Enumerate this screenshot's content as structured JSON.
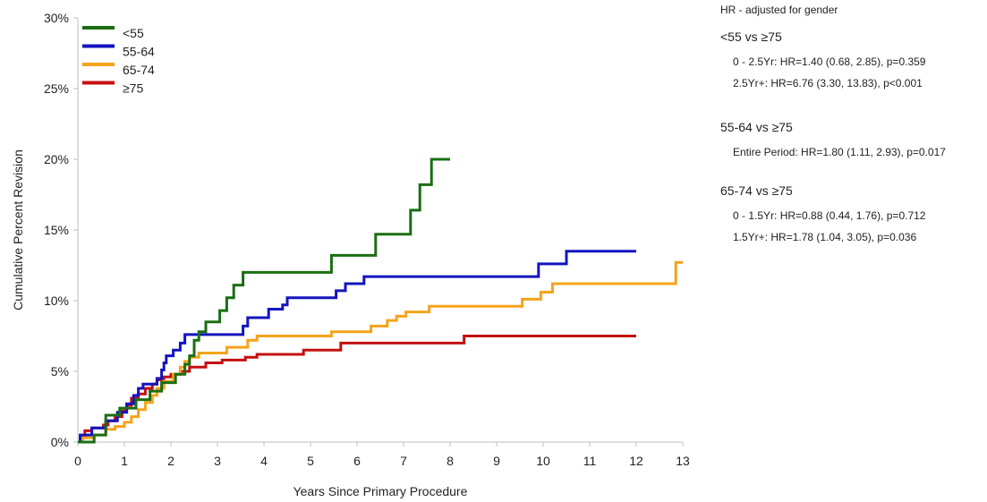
{
  "chart_data": {
    "type": "line",
    "title": "",
    "xlabel": "Years Since Primary Procedure",
    "ylabel": "Cumulative Percent Revision",
    "xlim": [
      0,
      13
    ],
    "ylim": [
      0,
      30
    ],
    "x_ticks": [
      "0",
      "1",
      "2",
      "3",
      "4",
      "5",
      "6",
      "7",
      "8",
      "9",
      "10",
      "11",
      "12",
      "13"
    ],
    "y_ticks": [
      "0%",
      "5%",
      "10%",
      "15%",
      "20%",
      "25%",
      "30%"
    ],
    "grid": false,
    "legend_position": "top-left",
    "series": [
      {
        "name": "<55",
        "color": "#1a6e12",
        "points": [
          [
            0,
            0
          ],
          [
            0.35,
            0
          ],
          [
            0.35,
            0.5
          ],
          [
            0.6,
            0.5
          ],
          [
            0.6,
            1.9
          ],
          [
            0.9,
            1.9
          ],
          [
            0.9,
            2.4
          ],
          [
            1.25,
            2.4
          ],
          [
            1.25,
            3.0
          ],
          [
            1.55,
            3.0
          ],
          [
            1.55,
            3.6
          ],
          [
            1.8,
            3.6
          ],
          [
            1.8,
            4.2
          ],
          [
            2.1,
            4.2
          ],
          [
            2.1,
            4.8
          ],
          [
            2.3,
            4.8
          ],
          [
            2.3,
            5.5
          ],
          [
            2.4,
            5.5
          ],
          [
            2.4,
            6.1
          ],
          [
            2.5,
            6.1
          ],
          [
            2.5,
            7.2
          ],
          [
            2.6,
            7.2
          ],
          [
            2.6,
            7.8
          ],
          [
            2.75,
            7.8
          ],
          [
            2.75,
            8.5
          ],
          [
            3.05,
            8.5
          ],
          [
            3.05,
            9.3
          ],
          [
            3.2,
            9.3
          ],
          [
            3.2,
            10.2
          ],
          [
            3.35,
            10.2
          ],
          [
            3.35,
            11.1
          ],
          [
            3.55,
            11.1
          ],
          [
            3.55,
            12.0
          ],
          [
            5.45,
            12.0
          ],
          [
            5.45,
            13.2
          ],
          [
            6.4,
            13.2
          ],
          [
            6.4,
            14.7
          ],
          [
            7.15,
            14.7
          ],
          [
            7.15,
            16.4
          ],
          [
            7.35,
            16.4
          ],
          [
            7.35,
            18.2
          ],
          [
            7.6,
            18.2
          ],
          [
            7.6,
            20.0
          ],
          [
            8.0,
            20.0
          ]
        ]
      },
      {
        "name": "55-64",
        "color": "#1414bf",
        "points": [
          [
            0,
            0
          ],
          [
            0.05,
            0
          ],
          [
            0.05,
            0.5
          ],
          [
            0.3,
            0.5
          ],
          [
            0.3,
            1.0
          ],
          [
            0.6,
            1.0
          ],
          [
            0.6,
            1.5
          ],
          [
            0.85,
            1.5
          ],
          [
            0.85,
            2.1
          ],
          [
            1.05,
            2.1
          ],
          [
            1.05,
            2.7
          ],
          [
            1.2,
            2.7
          ],
          [
            1.2,
            3.3
          ],
          [
            1.3,
            3.3
          ],
          [
            1.3,
            3.8
          ],
          [
            1.4,
            3.8
          ],
          [
            1.4,
            4.1
          ],
          [
            1.7,
            4.1
          ],
          [
            1.7,
            4.5
          ],
          [
            1.8,
            4.5
          ],
          [
            1.8,
            5.1
          ],
          [
            1.85,
            5.1
          ],
          [
            1.85,
            5.6
          ],
          [
            1.9,
            5.6
          ],
          [
            1.9,
            6.1
          ],
          [
            2.05,
            6.1
          ],
          [
            2.05,
            6.5
          ],
          [
            2.2,
            6.5
          ],
          [
            2.2,
            7.0
          ],
          [
            2.3,
            7.0
          ],
          [
            2.3,
            7.6
          ],
          [
            3.55,
            7.6
          ],
          [
            3.55,
            8.2
          ],
          [
            3.65,
            8.2
          ],
          [
            3.65,
            8.8
          ],
          [
            4.1,
            8.8
          ],
          [
            4.1,
            9.4
          ],
          [
            4.4,
            9.4
          ],
          [
            4.4,
            9.7
          ],
          [
            4.5,
            9.7
          ],
          [
            4.5,
            10.2
          ],
          [
            5.55,
            10.2
          ],
          [
            5.55,
            10.7
          ],
          [
            5.75,
            10.7
          ],
          [
            5.75,
            11.2
          ],
          [
            6.15,
            11.2
          ],
          [
            6.15,
            11.7
          ],
          [
            9.9,
            11.7
          ],
          [
            9.9,
            12.6
          ],
          [
            10.5,
            12.6
          ],
          [
            10.5,
            13.5
          ],
          [
            12.0,
            13.5
          ]
        ]
      },
      {
        "name": "65-74",
        "color": "#f5a31a",
        "points": [
          [
            0,
            0
          ],
          [
            0.1,
            0
          ],
          [
            0.1,
            0.3
          ],
          [
            0.35,
            0.3
          ],
          [
            0.35,
            0.5
          ],
          [
            0.6,
            0.5
          ],
          [
            0.6,
            0.9
          ],
          [
            0.8,
            0.9
          ],
          [
            0.8,
            1.1
          ],
          [
            1.0,
            1.1
          ],
          [
            1.0,
            1.4
          ],
          [
            1.15,
            1.4
          ],
          [
            1.15,
            1.8
          ],
          [
            1.3,
            1.8
          ],
          [
            1.3,
            2.3
          ],
          [
            1.45,
            2.3
          ],
          [
            1.45,
            2.8
          ],
          [
            1.6,
            2.8
          ],
          [
            1.6,
            3.3
          ],
          [
            1.7,
            3.3
          ],
          [
            1.7,
            3.8
          ],
          [
            1.85,
            3.8
          ],
          [
            1.85,
            4.3
          ],
          [
            2.05,
            4.3
          ],
          [
            2.05,
            4.8
          ],
          [
            2.2,
            4.8
          ],
          [
            2.2,
            5.3
          ],
          [
            2.3,
            5.3
          ],
          [
            2.3,
            5.7
          ],
          [
            2.4,
            5.7
          ],
          [
            2.4,
            6.0
          ],
          [
            2.6,
            6.0
          ],
          [
            2.6,
            6.3
          ],
          [
            3.2,
            6.3
          ],
          [
            3.2,
            6.7
          ],
          [
            3.65,
            6.7
          ],
          [
            3.65,
            7.2
          ],
          [
            3.85,
            7.2
          ],
          [
            3.85,
            7.5
          ],
          [
            5.45,
            7.5
          ],
          [
            5.45,
            7.8
          ],
          [
            6.3,
            7.8
          ],
          [
            6.3,
            8.2
          ],
          [
            6.65,
            8.2
          ],
          [
            6.65,
            8.6
          ],
          [
            6.85,
            8.6
          ],
          [
            6.85,
            8.9
          ],
          [
            7.05,
            8.9
          ],
          [
            7.05,
            9.2
          ],
          [
            7.55,
            9.2
          ],
          [
            7.55,
            9.6
          ],
          [
            9.55,
            9.6
          ],
          [
            9.55,
            10.1
          ],
          [
            9.95,
            10.1
          ],
          [
            9.95,
            10.6
          ],
          [
            10.2,
            10.6
          ],
          [
            10.2,
            11.2
          ],
          [
            12.85,
            11.2
          ],
          [
            12.85,
            12.7
          ],
          [
            13.0,
            12.7
          ]
        ]
      },
      {
        "name": "≥75",
        "color": "#c41010",
        "points": [
          [
            0,
            0
          ],
          [
            0.05,
            0
          ],
          [
            0.05,
            0.4
          ],
          [
            0.15,
            0.4
          ],
          [
            0.15,
            0.8
          ],
          [
            0.3,
            0.8
          ],
          [
            0.3,
            1.0
          ],
          [
            0.55,
            1.0
          ],
          [
            0.55,
            1.2
          ],
          [
            0.65,
            1.2
          ],
          [
            0.65,
            1.5
          ],
          [
            0.8,
            1.5
          ],
          [
            0.8,
            1.8
          ],
          [
            0.95,
            1.8
          ],
          [
            0.95,
            2.2
          ],
          [
            1.05,
            2.2
          ],
          [
            1.05,
            2.6
          ],
          [
            1.15,
            2.6
          ],
          [
            1.15,
            3.1
          ],
          [
            1.3,
            3.1
          ],
          [
            1.3,
            3.4
          ],
          [
            1.45,
            3.4
          ],
          [
            1.45,
            3.8
          ],
          [
            1.6,
            3.8
          ],
          [
            1.6,
            4.1
          ],
          [
            1.7,
            4.1
          ],
          [
            1.7,
            4.4
          ],
          [
            1.85,
            4.4
          ],
          [
            1.85,
            4.6
          ],
          [
            2.0,
            4.6
          ],
          [
            2.0,
            4.8
          ],
          [
            2.2,
            4.8
          ],
          [
            2.2,
            5.0
          ],
          [
            2.4,
            5.0
          ],
          [
            2.4,
            5.3
          ],
          [
            2.75,
            5.3
          ],
          [
            2.75,
            5.6
          ],
          [
            3.1,
            5.6
          ],
          [
            3.1,
            5.8
          ],
          [
            3.6,
            5.8
          ],
          [
            3.6,
            6.0
          ],
          [
            3.85,
            6.0
          ],
          [
            3.85,
            6.2
          ],
          [
            4.85,
            6.2
          ],
          [
            4.85,
            6.5
          ],
          [
            5.65,
            6.5
          ],
          [
            5.65,
            7.0
          ],
          [
            8.3,
            7.0
          ],
          [
            8.3,
            7.5
          ],
          [
            12.0,
            7.5
          ]
        ]
      }
    ]
  },
  "stats": {
    "title": "HR - adjusted for gender",
    "groups": [
      {
        "heading": "<55 vs ≥75",
        "lines": [
          "0 - 2.5Yr: HR=1.40 (0.68, 2.85), p=0.359",
          "2.5Yr+: HR=6.76 (3.30, 13.83), p<0.001"
        ]
      },
      {
        "heading": "55-64 vs ≥75",
        "lines": [
          "Entire Period: HR=1.80 (1.11, 2.93), p=0.017"
        ]
      },
      {
        "heading": "65-74 vs ≥75",
        "lines": [
          "0 - 1.5Yr: HR=0.88 (0.44, 1.76), p=0.712",
          "1.5Yr+: HR=1.78 (1.04, 3.05), p=0.036"
        ]
      }
    ]
  }
}
